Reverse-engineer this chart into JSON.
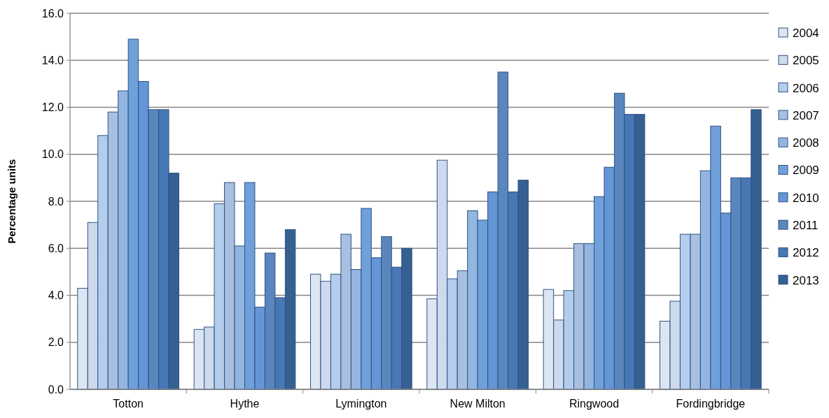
{
  "chart_data": {
    "type": "bar",
    "ylabel": "Percentage units",
    "categories": [
      "Totton",
      "Hythe",
      "Lymington",
      "New Milton",
      "Ringwood",
      "Fordingbridge"
    ],
    "series": [
      {
        "name": "2004",
        "color": "#dce6f2",
        "values": [
          4.3,
          2.55,
          4.9,
          3.85,
          4.25,
          2.9
        ]
      },
      {
        "name": "2005",
        "color": "#cdd9ec",
        "values": [
          7.1,
          2.65,
          4.6,
          9.75,
          2.95,
          3.75
        ]
      },
      {
        "name": "2006",
        "color": "#b5cdec",
        "values": [
          10.8,
          7.9,
          4.9,
          4.7,
          4.2,
          6.6
        ]
      },
      {
        "name": "2007",
        "color": "#a9bfdf",
        "values": [
          11.8,
          8.8,
          6.6,
          5.05,
          6.2,
          6.6
        ]
      },
      {
        "name": "2008",
        "color": "#93b6e1",
        "values": [
          12.7,
          6.1,
          5.1,
          7.6,
          6.2,
          9.3
        ]
      },
      {
        "name": "2009",
        "color": "#6fa0da",
        "values": [
          14.9,
          8.8,
          7.7,
          7.2,
          8.2,
          11.2
        ]
      },
      {
        "name": "2010",
        "color": "#6495d7",
        "values": [
          13.1,
          3.5,
          5.6,
          8.4,
          9.45,
          7.5
        ]
      },
      {
        "name": "2011",
        "color": "#5a86be",
        "values": [
          11.9,
          5.8,
          6.5,
          13.5,
          12.6,
          9.0
        ]
      },
      {
        "name": "2012",
        "color": "#4877b5",
        "values": [
          11.9,
          3.9,
          5.2,
          8.4,
          11.7,
          9.0
        ]
      },
      {
        "name": "2013",
        "color": "#365f92",
        "values": [
          9.2,
          6.8,
          6.0,
          8.9,
          11.7,
          11.9
        ]
      }
    ],
    "ylim": [
      0,
      16
    ],
    "yticks": [
      {
        "value": 0,
        "label": "0.0"
      },
      {
        "value": 2,
        "label": "2.0"
      },
      {
        "value": 4,
        "label": "4.0"
      },
      {
        "value": 6,
        "label": "6.0"
      },
      {
        "value": 8,
        "label": "8.0"
      },
      {
        "value": 10,
        "label": "10.0"
      },
      {
        "value": 12,
        "label": "12.0"
      },
      {
        "value": 14,
        "label": "14.0"
      },
      {
        "value": 16,
        "label": "16.0"
      }
    ],
    "grid": "y",
    "legend": "right"
  }
}
